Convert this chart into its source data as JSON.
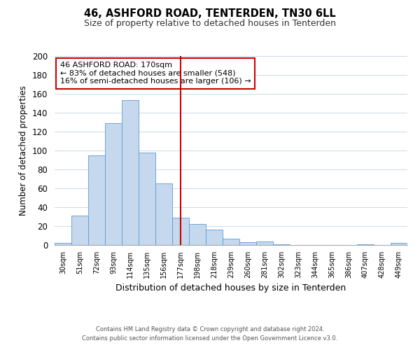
{
  "title": "46, ASHFORD ROAD, TENTERDEN, TN30 6LL",
  "subtitle": "Size of property relative to detached houses in Tenterden",
  "xlabel": "Distribution of detached houses by size in Tenterden",
  "ylabel": "Number of detached properties",
  "categories": [
    "30sqm",
    "51sqm",
    "72sqm",
    "93sqm",
    "114sqm",
    "135sqm",
    "156sqm",
    "177sqm",
    "198sqm",
    "218sqm",
    "239sqm",
    "260sqm",
    "281sqm",
    "302sqm",
    "323sqm",
    "344sqm",
    "365sqm",
    "386sqm",
    "407sqm",
    "428sqm",
    "449sqm"
  ],
  "bar_values": [
    2,
    31,
    95,
    129,
    153,
    98,
    65,
    29,
    22,
    16,
    7,
    3,
    4,
    1,
    0,
    0,
    0,
    0,
    1,
    0,
    2
  ],
  "bar_color": "#c5d8ed",
  "bar_edge_color": "#5b9bd5",
  "ylim": [
    0,
    200
  ],
  "yticks": [
    0,
    20,
    40,
    60,
    80,
    100,
    120,
    140,
    160,
    180,
    200
  ],
  "vline_index": 7,
  "vline_color": "#cc0000",
  "annotation_title": "46 ASHFORD ROAD: 170sqm",
  "annotation_line1": "← 83% of detached houses are smaller (548)",
  "annotation_line2": "16% of semi-detached houses are larger (106) →",
  "annotation_box_color": "#cc0000",
  "footer_line1": "Contains HM Land Registry data © Crown copyright and database right 2024.",
  "footer_line2": "Contains public sector information licensed under the Open Government Licence v3.0.",
  "background_color": "#ffffff",
  "grid_color": "#ccd9e8"
}
